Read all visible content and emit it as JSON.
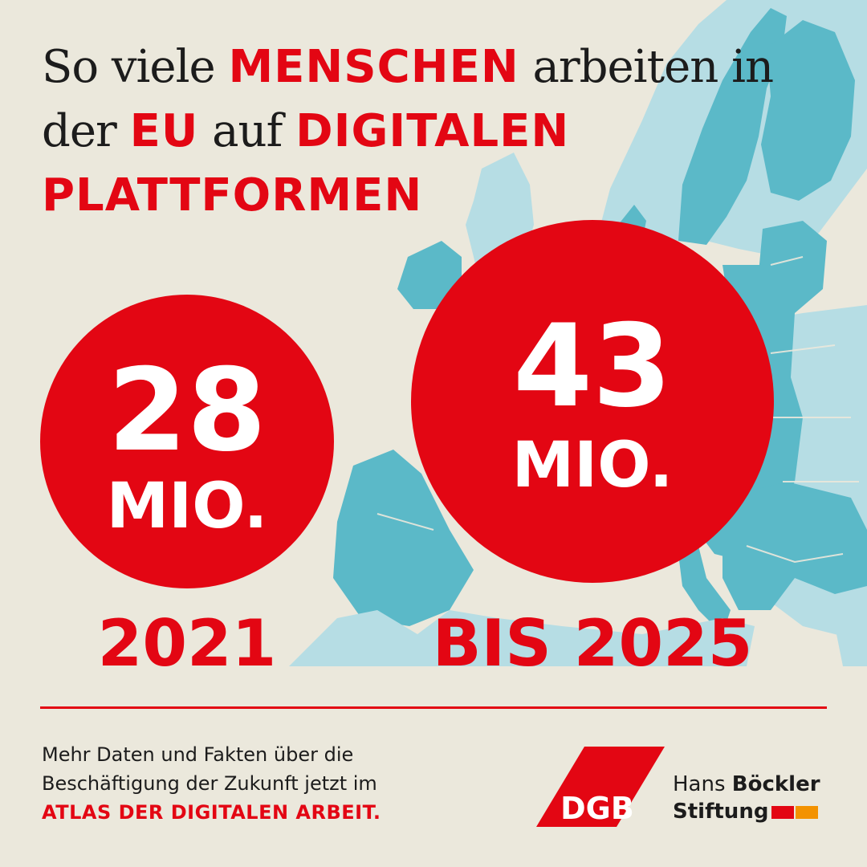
{
  "headline": {
    "part1": "So viele",
    "menschen": "MENSCHEN",
    "part2": "arbeiten in der",
    "eu": "EU",
    "part3": "auf",
    "digitalen": "DIGITALEN",
    "plattformen": "PLATTFORMEN"
  },
  "stats": [
    {
      "value": "28",
      "unit": "MIO.",
      "year": "2021"
    },
    {
      "value": "43",
      "unit": "MIO.",
      "year": "BIS 2025"
    }
  ],
  "footer": {
    "line1": "Mehr Daten und Fakten über die",
    "line2": "Beschäftigung der Zukunft jetzt im",
    "line3": "ATLAS DER DIGITALEN ARBEIT."
  },
  "logos": {
    "dgb": "DGB",
    "hbs_line1_a": "Hans",
    "hbs_line1_b": "Böckler",
    "hbs_line2": "Stiftung"
  },
  "colors": {
    "accent_red": "#e30613",
    "background": "#ebe8dc",
    "map_teal": "#5bb9c8",
    "map_light": "#b6dde4",
    "hbs_orange": "#f39200"
  }
}
